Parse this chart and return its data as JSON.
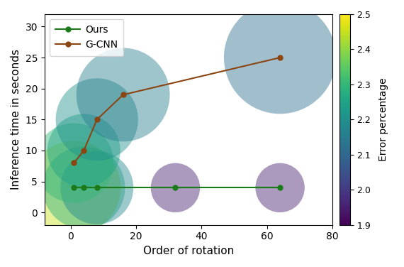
{
  "ours_x": [
    1,
    4,
    8,
    32,
    64
  ],
  "ours_y": [
    4.0,
    4.0,
    4.0,
    4.0,
    4.0
  ],
  "ours_errors": [
    2.45,
    2.28,
    2.18,
    1.95,
    1.95
  ],
  "ours_bubble_s": [
    9000,
    7000,
    5500,
    2500,
    2500
  ],
  "gcnn_x": [
    1,
    4,
    8,
    16,
    64
  ],
  "gcnn_y": [
    8.0,
    10.0,
    15.0,
    19.0,
    25.0
  ],
  "gcnn_errors": [
    2.3,
    2.25,
    2.2,
    2.15,
    2.12
  ],
  "gcnn_bubble_s": [
    6500,
    5500,
    7000,
    9000,
    13000
  ],
  "color_min": 1.9,
  "color_max": 2.5,
  "xlabel": "Order of rotation",
  "ylabel": "Inference time in seconds",
  "colorbar_label": "Error percentage",
  "ours_label": "Ours",
  "gcnn_label": "G-CNN",
  "ours_line_color": "#1a7a1a",
  "gcnn_line_color": "#8B4513",
  "xlim": [
    -8,
    78
  ],
  "ylim": [
    -2,
    32
  ],
  "xticks": [
    0,
    20,
    40,
    60,
    80
  ],
  "yticks": [
    0,
    5,
    10,
    15,
    20,
    25,
    30
  ]
}
